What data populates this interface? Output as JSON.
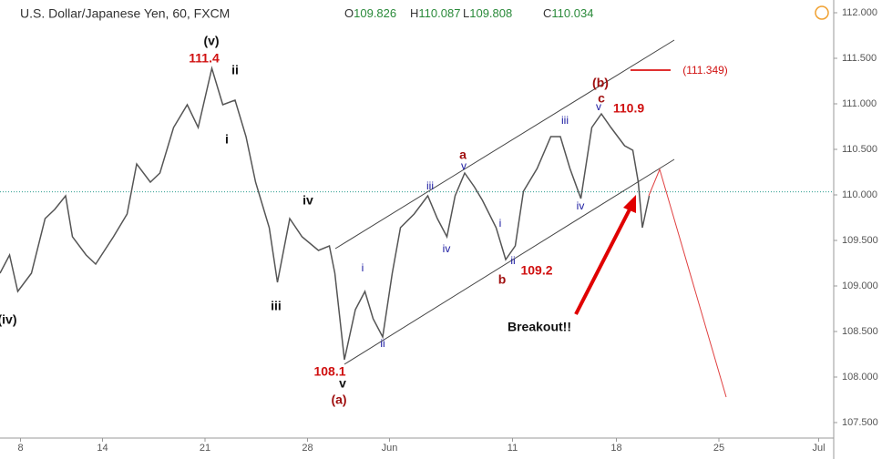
{
  "chart_data": {
    "type": "line",
    "title": "U.S. Dollar/Japanese Yen, 60, FXCM",
    "ohlc_header": [
      {
        "label": "O",
        "value": 109.826
      },
      {
        "label": "H",
        "value": 110.087
      },
      {
        "label": "L",
        "value": 109.808
      },
      {
        "label": "C",
        "value": 110.034
      }
    ],
    "last_price": 110.034,
    "x": [
      7.0,
      7.7,
      8.3,
      9.3,
      10.3,
      11.0,
      11.8,
      12.3,
      13.3,
      14.0,
      15.3,
      16.3,
      17.0,
      18.0,
      18.7,
      19.7,
      20.7,
      21.5,
      22.5,
      23.3,
      24.2,
      25.0,
      25.7,
      26.7,
      27.3,
      28.2,
      29.1,
      30.3,
      31.1,
      31.5,
      32.2,
      33.0,
      33.7,
      34.3,
      35.0,
      35.7,
      36.3,
      37.3,
      38.3,
      39.0,
      39.7,
      40.3,
      41.0,
      41.7,
      42.3,
      43.3,
      44.0,
      44.7,
      45.3,
      46.3,
      47.3,
      48.0,
      48.7,
      49.5,
      50.3,
      51.0,
      51.7,
      52.7,
      53.3,
      53.7,
      54.0,
      54.5
    ],
    "series": [
      {
        "color": "#555555",
        "values": [
          109.14,
          109.34,
          108.94,
          109.14,
          109.74,
          109.84,
          109.99,
          109.54,
          109.34,
          109.24,
          109.54,
          109.79,
          110.34,
          110.14,
          110.24,
          110.74,
          110.99,
          110.74,
          111.39,
          110.99,
          111.04,
          110.64,
          110.14,
          109.64,
          109.04,
          109.74,
          109.54,
          109.39,
          109.44,
          109.14,
          108.19,
          108.74,
          108.94,
          108.64,
          108.44,
          109.14,
          109.64,
          109.79,
          109.99,
          109.74,
          109.54,
          109.99,
          110.24,
          110.09,
          109.94,
          109.64,
          109.29,
          109.44,
          110.04,
          110.29,
          110.64,
          110.64,
          110.29,
          109.96,
          110.74,
          110.89,
          110.74,
          110.54,
          110.49,
          110.14,
          109.64,
          109.99
        ]
      }
    ],
    "xlim": [
      7,
      68
    ],
    "xticks": [
      {
        "value": 8.5,
        "label": "8"
      },
      {
        "value": 14.5,
        "label": "14"
      },
      {
        "value": 22,
        "label": "21"
      },
      {
        "value": 29.5,
        "label": "28"
      },
      {
        "value": 35.5,
        "label": "Jun"
      },
      {
        "value": 44.5,
        "label": "11"
      },
      {
        "value": 52.1,
        "label": "18"
      },
      {
        "value": 59.6,
        "label": "25"
      },
      {
        "value": 66.9,
        "label": "Jul"
      }
    ],
    "ylim": [
      107.34,
      112.14
    ],
    "yticks": [
      {
        "value": 107.5,
        "label": "107.500"
      },
      {
        "value": 108,
        "label": "108.000"
      },
      {
        "value": 108.5,
        "label": "108.500"
      },
      {
        "value": 109,
        "label": "109.000"
      },
      {
        "value": 109.5,
        "label": "109.500"
      },
      {
        "value": 110,
        "label": "110.000"
      },
      {
        "value": 110.5,
        "label": "110.500"
      },
      {
        "value": 111,
        "label": "111.000"
      },
      {
        "value": 111.5,
        "label": "111.500"
      },
      {
        "value": 112,
        "label": "112.000"
      }
    ],
    "annotations": [
      "(v)",
      "111.4",
      "ii",
      "i",
      "iii",
      "iv",
      "(iv)",
      "108.1",
      "v",
      "(a)",
      "i",
      "ii",
      "iii",
      "iv",
      "v",
      "a",
      "i",
      "ii",
      "b",
      "109.2",
      "iii",
      "iv",
      "v",
      "c",
      "(b)",
      "110.9",
      "Breakout!!",
      "(111.349)"
    ]
  }
}
